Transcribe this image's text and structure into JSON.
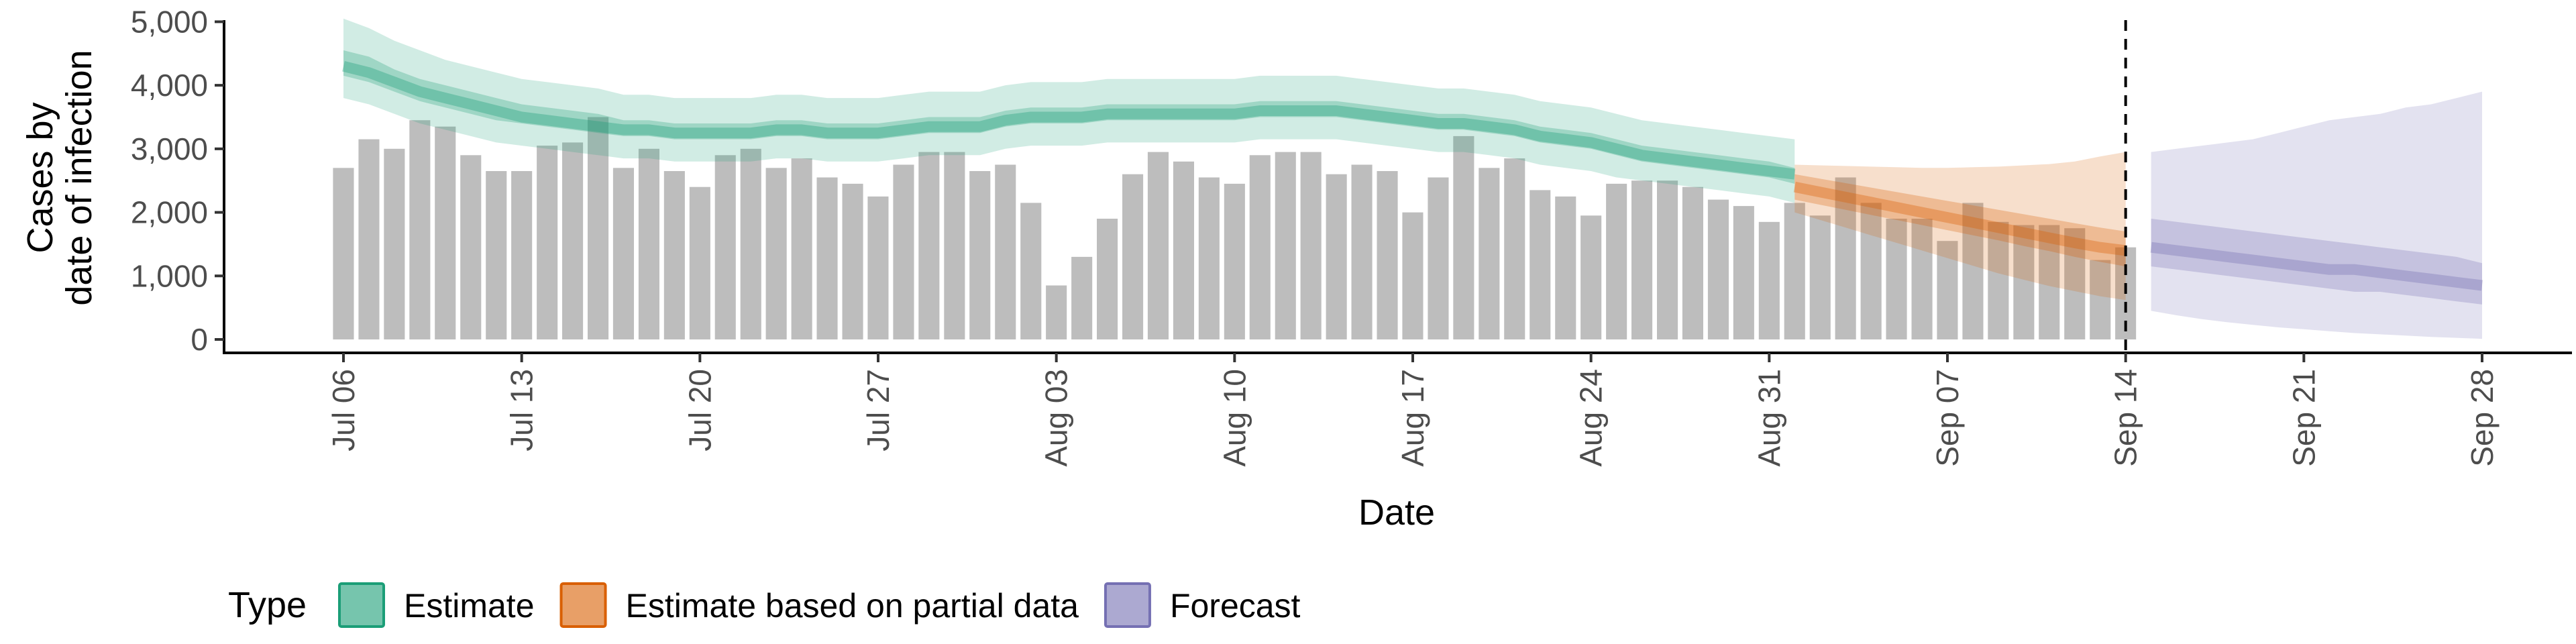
{
  "chart_data": {
    "type": "bar",
    "title": "",
    "xlabel": "Date",
    "ylabel": [
      "Cases by",
      "date of infection"
    ],
    "ylim": [
      0,
      5300
    ],
    "y_ticks": [
      0,
      1000,
      2000,
      3000,
      4000,
      5000
    ],
    "y_tick_labels": [
      "0",
      "1,000",
      "2,000",
      "3,000",
      "4,000",
      "5,000"
    ],
    "x_range": [
      "2020-07-06",
      "2020-09-28"
    ],
    "x_ticks": [
      "2020-07-06",
      "2020-07-13",
      "2020-07-20",
      "2020-07-27",
      "2020-08-03",
      "2020-08-10",
      "2020-08-17",
      "2020-08-24",
      "2020-08-31",
      "2020-09-07",
      "2020-09-14",
      "2020-09-21",
      "2020-09-28"
    ],
    "x_tick_labels": [
      "Jul 06",
      "Jul 13",
      "Jul 20",
      "Jul 27",
      "Aug 03",
      "Aug 10",
      "Aug 17",
      "Aug 24",
      "Aug 31",
      "Sep 07",
      "Sep 14",
      "Sep 21",
      "Sep 28"
    ],
    "grid": false,
    "vline_date": "2020-09-14",
    "legend": {
      "title": "Type",
      "position": "bottom",
      "entries": [
        {
          "label": "Estimate",
          "color": "#1b9e77"
        },
        {
          "label": "Estimate based on partial data",
          "color": "#d95f02"
        },
        {
          "label": "Forecast",
          "color": "#7570b3"
        }
      ]
    },
    "bars": {
      "start": "2020-07-06",
      "color": "#bdbdbd",
      "values": [
        2700,
        3150,
        3000,
        3450,
        3350,
        2900,
        2650,
        2650,
        3050,
        3100,
        3500,
        2700,
        3000,
        2650,
        2400,
        2900,
        3000,
        2700,
        2850,
        2550,
        2450,
        2250,
        2750,
        2950,
        2950,
        2650,
        2750,
        2150,
        850,
        1300,
        1900,
        2600,
        2950,
        2800,
        2550,
        2450,
        2900,
        2950,
        2950,
        2600,
        2750,
        2650,
        2000,
        2550,
        3200,
        2700,
        2850,
        2350,
        2250,
        1950,
        2450,
        2500,
        2500,
        2400,
        2200,
        2100,
        1850,
        2150,
        1950,
        2550,
        2150,
        1900,
        1900,
        1550,
        2150,
        1850,
        1800,
        1800,
        1750,
        1250,
        1450
      ]
    },
    "series": [
      {
        "name": "Estimate",
        "color": "#1b9e77",
        "start": "2020-07-06",
        "median": [
          4300,
          4200,
          4050,
          3900,
          3800,
          3700,
          3600,
          3500,
          3450,
          3400,
          3350,
          3300,
          3300,
          3250,
          3250,
          3250,
          3250,
          3300,
          3300,
          3250,
          3250,
          3250,
          3300,
          3350,
          3350,
          3350,
          3450,
          3500,
          3500,
          3500,
          3550,
          3550,
          3550,
          3550,
          3550,
          3550,
          3600,
          3600,
          3600,
          3600,
          3550,
          3500,
          3450,
          3400,
          3400,
          3350,
          3300,
          3200,
          3150,
          3100,
          3000,
          2900,
          2850,
          2800,
          2750,
          2700,
          2650,
          2600
        ],
        "inner_lo": [
          4150,
          4050,
          3900,
          3750,
          3650,
          3550,
          3450,
          3400,
          3350,
          3300,
          3250,
          3200,
          3200,
          3150,
          3150,
          3150,
          3150,
          3200,
          3200,
          3150,
          3150,
          3150,
          3200,
          3250,
          3250,
          3250,
          3350,
          3400,
          3400,
          3400,
          3450,
          3450,
          3450,
          3450,
          3450,
          3450,
          3500,
          3500,
          3500,
          3500,
          3450,
          3400,
          3350,
          3300,
          3300,
          3250,
          3200,
          3100,
          3050,
          3000,
          2900,
          2800,
          2750,
          2700,
          2650,
          2600,
          2550,
          2450
        ],
        "inner_hi": [
          4550,
          4450,
          4250,
          4100,
          4000,
          3900,
          3800,
          3700,
          3650,
          3600,
          3550,
          3450,
          3450,
          3400,
          3400,
          3400,
          3400,
          3450,
          3450,
          3400,
          3400,
          3400,
          3450,
          3500,
          3500,
          3500,
          3600,
          3650,
          3650,
          3650,
          3700,
          3700,
          3700,
          3700,
          3700,
          3700,
          3750,
          3750,
          3750,
          3750,
          3700,
          3650,
          3600,
          3550,
          3550,
          3500,
          3450,
          3350,
          3300,
          3250,
          3150,
          3050,
          3000,
          2950,
          2900,
          2850,
          2800,
          2700
        ],
        "outer_lo": [
          3800,
          3700,
          3550,
          3400,
          3300,
          3200,
          3100,
          3050,
          3000,
          2950,
          2900,
          2850,
          2850,
          2800,
          2800,
          2800,
          2800,
          2850,
          2850,
          2800,
          2800,
          2800,
          2850,
          2900,
          2900,
          2900,
          3000,
          3050,
          3050,
          3050,
          3100,
          3100,
          3100,
          3100,
          3100,
          3100,
          3150,
          3150,
          3150,
          3150,
          3100,
          3050,
          3000,
          2950,
          2950,
          2900,
          2850,
          2750,
          2700,
          2650,
          2550,
          2500,
          2450,
          2400,
          2350,
          2300,
          2250,
          2150
        ],
        "outer_hi": [
          5050,
          4900,
          4700,
          4550,
          4400,
          4300,
          4200,
          4100,
          4050,
          4000,
          3950,
          3850,
          3850,
          3800,
          3800,
          3800,
          3800,
          3850,
          3850,
          3800,
          3800,
          3800,
          3850,
          3900,
          3900,
          3900,
          4000,
          4050,
          4050,
          4050,
          4100,
          4100,
          4100,
          4100,
          4100,
          4100,
          4150,
          4150,
          4150,
          4150,
          4100,
          4050,
          4000,
          3950,
          3950,
          3900,
          3850,
          3750,
          3700,
          3650,
          3550,
          3450,
          3400,
          3350,
          3300,
          3250,
          3200,
          3150
        ]
      },
      {
        "name": "Estimate based on partial data",
        "color": "#d95f02",
        "start": "2020-09-01",
        "median": [
          2400,
          2320,
          2240,
          2160,
          2080,
          2000,
          1920,
          1840,
          1760,
          1680,
          1600,
          1520,
          1450,
          1400
        ],
        "inner_lo": [
          2200,
          2120,
          2040,
          1960,
          1880,
          1800,
          1720,
          1640,
          1560,
          1470,
          1390,
          1300,
          1220,
          1150
        ],
        "inner_hi": [
          2600,
          2530,
          2460,
          2390,
          2320,
          2250,
          2180,
          2110,
          2040,
          1970,
          1900,
          1830,
          1760,
          1700
        ],
        "outer_lo": [
          2000,
          1880,
          1760,
          1640,
          1520,
          1400,
          1280,
          1160,
          1040,
          940,
          840,
          760,
          680,
          620
        ],
        "outer_hi": [
          2750,
          2740,
          2730,
          2720,
          2710,
          2700,
          2700,
          2710,
          2720,
          2740,
          2760,
          2800,
          2880,
          2950
        ]
      },
      {
        "name": "Forecast",
        "color": "#7570b3",
        "start": "2020-09-15",
        "median": [
          1450,
          1400,
          1350,
          1300,
          1250,
          1200,
          1150,
          1100,
          1100,
          1050,
          1000,
          950,
          900,
          850
        ],
        "inner_lo": [
          1150,
          1100,
          1050,
          1000,
          950,
          900,
          850,
          800,
          750,
          750,
          700,
          650,
          600,
          550
        ],
        "inner_hi": [
          1900,
          1850,
          1800,
          1750,
          1700,
          1650,
          1600,
          1550,
          1500,
          1450,
          1400,
          1350,
          1300,
          1200
        ],
        "outer_lo": [
          450,
          380,
          320,
          270,
          230,
          190,
          160,
          130,
          100,
          80,
          60,
          40,
          25,
          10
        ],
        "outer_hi": [
          2950,
          3000,
          3050,
          3100,
          3150,
          3250,
          3350,
          3450,
          3500,
          3550,
          3650,
          3700,
          3800,
          3900
        ]
      }
    ]
  }
}
